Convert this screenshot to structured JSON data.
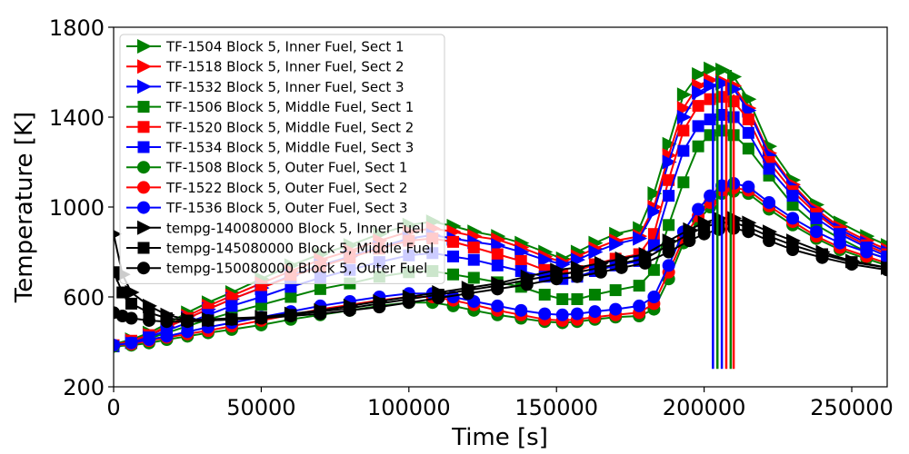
{
  "chart_data": {
    "type": "line",
    "xlabel": "Time [s]",
    "ylabel": "Temperature [K]",
    "xlim": [
      0,
      262000
    ],
    "ylim": [
      200,
      1800
    ],
    "xticks": [
      0,
      50000,
      100000,
      150000,
      200000,
      250000
    ],
    "yticks": [
      200,
      600,
      1000,
      1400,
      1800
    ],
    "xtick_labels": [
      "0",
      "50000",
      "100000",
      "150000",
      "200000",
      "250000"
    ],
    "ytick_labels": [
      "200",
      "600",
      "1000",
      "1400",
      "1800"
    ],
    "grid": false,
    "legend_position": "top-left",
    "series": [
      {
        "name": "TF-1504 Block 5, Inner Fuel, Sect 1",
        "color": "#008000",
        "marker": "triangle-right",
        "x": [
          0,
          6000,
          12000,
          18000,
          25000,
          32000,
          40000,
          50000,
          60000,
          70000,
          80000,
          90000,
          100000,
          108000,
          115000,
          122000,
          130000,
          138000,
          146000,
          152000,
          157000,
          163000,
          170000,
          178000,
          183000,
          188000,
          193000,
          198000,
          202000,
          206000,
          210000,
          215000,
          222000,
          230000,
          238000,
          246000,
          255000,
          262000
        ],
        "y": [
          390,
          410,
          440,
          480,
          530,
          575,
          620,
          680,
          740,
          790,
          830,
          880,
          920,
          935,
          915,
          890,
          870,
          840,
          800,
          770,
          800,
          840,
          880,
          905,
          1060,
          1280,
          1500,
          1590,
          1615,
          1610,
          1580,
          1480,
          1270,
          1120,
          1010,
          930,
          870,
          830
        ]
      },
      {
        "name": "TF-1518 Block 5, Inner Fuel, Sect 2",
        "color": "#ff0000",
        "marker": "triangle-right",
        "x": [
          0,
          6000,
          12000,
          18000,
          25000,
          32000,
          40000,
          50000,
          60000,
          70000,
          80000,
          90000,
          100000,
          108000,
          115000,
          122000,
          130000,
          138000,
          146000,
          152000,
          157000,
          163000,
          170000,
          178000,
          183000,
          188000,
          193000,
          198000,
          202000,
          206000,
          210000,
          215000,
          222000,
          230000,
          238000,
          246000,
          255000,
          262000
        ],
        "y": [
          385,
          405,
          430,
          470,
          515,
          560,
          605,
          660,
          715,
          765,
          805,
          850,
          890,
          905,
          890,
          870,
          855,
          820,
          780,
          755,
          780,
          815,
          850,
          870,
          1000,
          1230,
          1440,
          1540,
          1565,
          1560,
          1540,
          1440,
          1240,
          1100,
          990,
          910,
          850,
          810
        ]
      },
      {
        "name": "TF-1532 Block 5, Inner Fuel, Sect 3",
        "color": "#0000ff",
        "marker": "triangle-right",
        "x": [
          0,
          6000,
          12000,
          18000,
          25000,
          32000,
          40000,
          50000,
          60000,
          70000,
          80000,
          90000,
          100000,
          108000,
          115000,
          122000,
          130000,
          138000,
          146000,
          152000,
          157000,
          163000,
          170000,
          178000,
          183000,
          188000,
          193000,
          198000,
          202000,
          206000,
          210000,
          215000,
          222000,
          230000,
          238000,
          246000,
          255000,
          262000
        ],
        "y": [
          380,
          400,
          425,
          465,
          505,
          545,
          590,
          640,
          695,
          740,
          780,
          820,
          860,
          875,
          860,
          845,
          830,
          800,
          765,
          745,
          765,
          800,
          835,
          860,
          980,
          1200,
          1400,
          1510,
          1540,
          1550,
          1525,
          1430,
          1230,
          1090,
          980,
          900,
          840,
          800
        ]
      },
      {
        "name": "TF-1506 Block 5, Middle Fuel, Sect 1",
        "color": "#008000",
        "marker": "square",
        "x": [
          0,
          6000,
          12000,
          18000,
          25000,
          32000,
          40000,
          50000,
          60000,
          70000,
          80000,
          90000,
          100000,
          108000,
          115000,
          122000,
          130000,
          138000,
          146000,
          152000,
          157000,
          163000,
          170000,
          178000,
          183000,
          188000,
          193000,
          198000,
          202000,
          206000,
          210000,
          215000,
          222000,
          230000,
          238000,
          246000,
          255000,
          262000
        ],
        "y": [
          380,
          395,
          415,
          440,
          470,
          500,
          530,
          565,
          600,
          635,
          660,
          690,
          710,
          715,
          700,
          685,
          665,
          645,
          610,
          590,
          590,
          610,
          630,
          650,
          720,
          920,
          1110,
          1270,
          1320,
          1340,
          1320,
          1260,
          1140,
          1010,
          920,
          860,
          800,
          770
        ]
      },
      {
        "name": "TF-1520 Block 5, Middle Fuel, Sect 2",
        "color": "#ff0000",
        "marker": "square",
        "x": [
          0,
          6000,
          12000,
          18000,
          25000,
          32000,
          40000,
          50000,
          60000,
          70000,
          80000,
          90000,
          100000,
          108000,
          115000,
          122000,
          130000,
          138000,
          146000,
          152000,
          157000,
          163000,
          170000,
          178000,
          183000,
          188000,
          193000,
          198000,
          202000,
          206000,
          210000,
          215000,
          222000,
          230000,
          238000,
          246000,
          255000,
          262000
        ],
        "y": [
          385,
          405,
          430,
          465,
          505,
          545,
          590,
          640,
          690,
          735,
          775,
          815,
          850,
          860,
          845,
          820,
          790,
          760,
          720,
          700,
          715,
          745,
          770,
          790,
          880,
          1120,
          1340,
          1450,
          1480,
          1490,
          1470,
          1390,
          1200,
          1070,
          970,
          890,
          830,
          790
        ]
      },
      {
        "name": "TF-1534 Block 5, Middle Fuel, Sect 3",
        "color": "#0000ff",
        "marker": "square",
        "x": [
          0,
          6000,
          12000,
          18000,
          25000,
          32000,
          40000,
          50000,
          60000,
          70000,
          80000,
          90000,
          100000,
          108000,
          115000,
          122000,
          130000,
          138000,
          146000,
          152000,
          157000,
          163000,
          170000,
          178000,
          183000,
          188000,
          193000,
          198000,
          202000,
          206000,
          210000,
          215000,
          222000,
          230000,
          238000,
          246000,
          255000,
          262000
        ],
        "y": [
          380,
          395,
          420,
          450,
          485,
          520,
          560,
          600,
          645,
          685,
          720,
          755,
          785,
          795,
          780,
          765,
          740,
          715,
          690,
          680,
          690,
          715,
          740,
          760,
          830,
          1050,
          1250,
          1360,
          1390,
          1410,
          1400,
          1330,
          1170,
          1050,
          950,
          880,
          820,
          780
        ]
      },
      {
        "name": "TF-1508 Block 5, Outer Fuel, Sect 1",
        "color": "#008000",
        "marker": "circle",
        "x": [
          0,
          6000,
          12000,
          18000,
          25000,
          32000,
          40000,
          50000,
          60000,
          70000,
          80000,
          90000,
          100000,
          108000,
          115000,
          122000,
          130000,
          138000,
          146000,
          152000,
          157000,
          163000,
          170000,
          178000,
          183000,
          188000,
          193000,
          198000,
          202000,
          206000,
          210000,
          215000,
          222000,
          230000,
          238000,
          246000,
          255000,
          262000
        ],
        "y": [
          380,
          385,
          395,
          410,
          425,
          440,
          455,
          475,
          500,
          520,
          540,
          560,
          575,
          575,
          560,
          540,
          520,
          505,
          490,
          485,
          490,
          500,
          510,
          515,
          545,
          680,
          840,
          940,
          1000,
          1060,
          1070,
          1060,
          990,
          920,
          860,
          810,
          770,
          740
        ]
      },
      {
        "name": "TF-1522 Block 5, Outer Fuel, Sect 2",
        "color": "#ff0000",
        "marker": "circle",
        "x": [
          0,
          6000,
          12000,
          18000,
          25000,
          32000,
          40000,
          50000,
          60000,
          70000,
          80000,
          90000,
          100000,
          108000,
          115000,
          122000,
          130000,
          138000,
          146000,
          152000,
          157000,
          163000,
          170000,
          178000,
          183000,
          188000,
          193000,
          198000,
          202000,
          206000,
          210000,
          215000,
          222000,
          230000,
          238000,
          246000,
          255000,
          262000
        ],
        "y": [
          385,
          390,
          405,
          420,
          435,
          450,
          470,
          495,
          520,
          545,
          565,
          585,
          600,
          600,
          585,
          565,
          540,
          520,
          500,
          495,
          500,
          510,
          520,
          530,
          570,
          710,
          860,
          960,
          1020,
          1075,
          1085,
          1075,
          1005,
          935,
          870,
          820,
          780,
          750
        ]
      },
      {
        "name": "TF-1536 Block 5, Outer Fuel, Sect 3",
        "color": "#0000ff",
        "marker": "circle",
        "x": [
          0,
          6000,
          12000,
          18000,
          25000,
          32000,
          40000,
          50000,
          60000,
          70000,
          80000,
          90000,
          100000,
          108000,
          115000,
          122000,
          130000,
          138000,
          146000,
          152000,
          157000,
          163000,
          170000,
          178000,
          183000,
          188000,
          193000,
          198000,
          202000,
          206000,
          210000,
          215000,
          222000,
          230000,
          238000,
          246000,
          255000,
          262000
        ],
        "y": [
          385,
          395,
          410,
          425,
          445,
          465,
          485,
          510,
          535,
          560,
          580,
          600,
          615,
          615,
          600,
          580,
          560,
          540,
          525,
          520,
          525,
          535,
          545,
          560,
          600,
          740,
          890,
          990,
          1050,
          1095,
          1105,
          1090,
          1020,
          950,
          890,
          840,
          800,
          770
        ]
      },
      {
        "name": "tempg-140080000 Block 5, Inner Fuel",
        "color": "#000000",
        "marker": "triangle-right",
        "x": [
          0,
          3000,
          6000,
          12000,
          18000,
          25000,
          32000,
          40000,
          50000,
          60000,
          70000,
          80000,
          90000,
          100000,
          110000,
          120000,
          130000,
          140000,
          150000,
          157000,
          165000,
          172000,
          180000,
          188000,
          195000,
          200000,
          205000,
          210000,
          215000,
          222000,
          230000,
          240000,
          250000,
          262000
        ],
        "y": [
          880,
          700,
          620,
          560,
          520,
          500,
          500,
          505,
          510,
          525,
          540,
          560,
          580,
          600,
          620,
          640,
          660,
          690,
          720,
          730,
          750,
          770,
          790,
          850,
          900,
          930,
          950,
          950,
          930,
          890,
          850,
          800,
          760,
          730
        ]
      },
      {
        "name": "tempg-145080000 Block 5, Middle Fuel",
        "color": "#000000",
        "marker": "square",
        "x": [
          0,
          3000,
          6000,
          12000,
          18000,
          25000,
          32000,
          40000,
          50000,
          60000,
          70000,
          80000,
          90000,
          100000,
          110000,
          120000,
          130000,
          140000,
          150000,
          157000,
          165000,
          172000,
          180000,
          188000,
          195000,
          200000,
          205000,
          210000,
          215000,
          222000,
          230000,
          240000,
          250000,
          262000
        ],
        "y": [
          710,
          620,
          570,
          530,
          505,
          495,
          495,
          500,
          510,
          520,
          535,
          550,
          570,
          590,
          610,
          630,
          650,
          675,
          700,
          710,
          730,
          750,
          770,
          830,
          880,
          910,
          930,
          930,
          910,
          870,
          830,
          790,
          755,
          730
        ]
      },
      {
        "name": "tempg-150080000 Block 5, Outer Fuel",
        "color": "#000000",
        "marker": "circle",
        "x": [
          0,
          3000,
          6000,
          12000,
          18000,
          25000,
          32000,
          40000,
          50000,
          60000,
          70000,
          80000,
          90000,
          100000,
          110000,
          120000,
          130000,
          140000,
          150000,
          157000,
          165000,
          172000,
          180000,
          188000,
          195000,
          200000,
          205000,
          210000,
          215000,
          222000,
          230000,
          240000,
          250000,
          262000
        ],
        "y": [
          530,
          515,
          505,
          495,
          490,
          490,
          495,
          500,
          505,
          515,
          525,
          540,
          555,
          575,
          595,
          615,
          635,
          655,
          680,
          690,
          710,
          730,
          750,
          800,
          850,
          880,
          900,
          905,
          890,
          850,
          810,
          775,
          745,
          720
        ]
      }
    ],
    "vertical_drops": [
      {
        "color": "#0000ff",
        "x": 203000,
        "y_top": 1540
      },
      {
        "color": "#008000",
        "x": 204500,
        "y_top": 1600
      },
      {
        "color": "#0000ff",
        "x": 206000,
        "y_top": 1550
      },
      {
        "color": "#ff0000",
        "x": 207500,
        "y_top": 1560
      },
      {
        "color": "#008000",
        "x": 209000,
        "y_top": 1610
      },
      {
        "color": "#ff0000",
        "x": 210000,
        "y_top": 1500
      }
    ]
  }
}
